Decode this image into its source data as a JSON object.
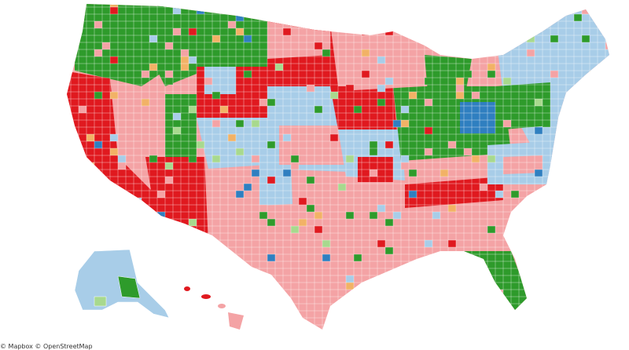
{
  "map": {
    "name": "us-county-choropleth",
    "colors": {
      "red": "#e0191f",
      "pink": "#f4a3a5",
      "green": "#2e9b2b",
      "lightgreen": "#a8d98e",
      "lightblue": "#a8cde8",
      "blue": "#2f7fc0",
      "orange": "#f2b266",
      "border": "#ffffff"
    }
  },
  "footer": {
    "text": "© Mapbox © OpenStreetMap"
  }
}
